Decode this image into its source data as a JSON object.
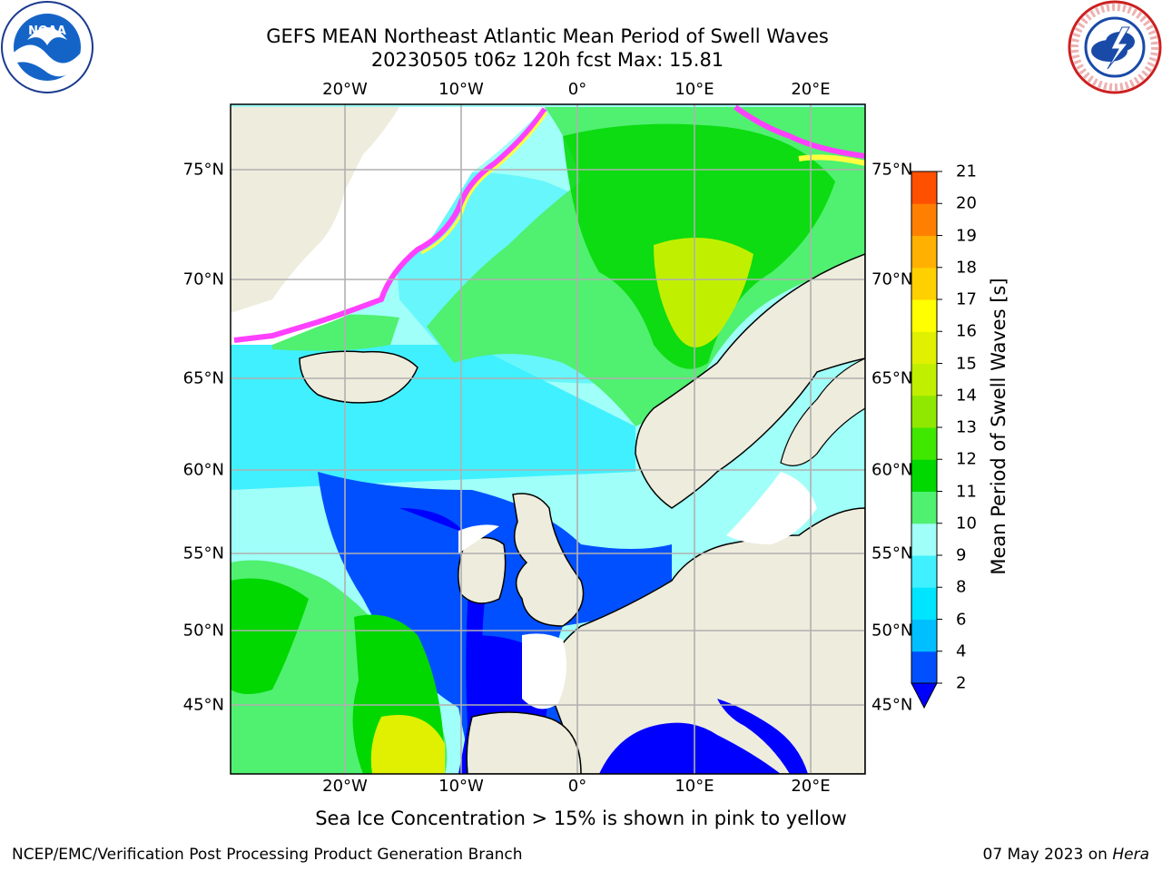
{
  "title_line1": "GEFS MEAN Northeast Atlantic Mean Period of Swell Waves",
  "title_line2": "20230505 t06z 120h fcst   Max: 15.81",
  "lon_labels": [
    "20°W",
    "10°W",
    "0°",
    "10°E",
    "20°E"
  ],
  "lat_labels_left": [
    "75°N",
    "70°N",
    "65°N",
    "60°N",
    "55°N",
    "50°N",
    "45°N"
  ],
  "lat_labels_right": [
    "75°N",
    "70°N",
    "65°N",
    "60°N",
    "55°N",
    "50°N",
    "45°N"
  ],
  "colorbar": {
    "label": "Mean Period of Swell Waves [s]",
    "ticks": [
      "2",
      "4",
      "6",
      "8",
      "9",
      "10",
      "11",
      "12",
      "13",
      "14",
      "15",
      "16",
      "17",
      "18",
      "19",
      "20",
      "21"
    ],
    "colors": [
      "#0050ff",
      "#00bfff",
      "#00e5ff",
      "#40f0ff",
      "#a0fff8",
      "#50f070",
      "#00d800",
      "#40e800",
      "#90e800",
      "#c0f000",
      "#e0f000",
      "#ffff00",
      "#ffd000",
      "#ffb000",
      "#ff8000",
      "#ff5000",
      "#ff2000",
      "#ff0000"
    ],
    "under_color": "#0000ff"
  },
  "footer_note": "Sea Ice Concentration > 15% is shown in pink to yellow",
  "footer_left": "NCEP/EMC/Verification Post Processing Product Generation Branch",
  "footer_right_date": "07 May 2023 on",
  "footer_right_machine": "Hera",
  "colors": {
    "land": "#eeecdc",
    "grid": "#b0b0b0",
    "ice_pink": "#ff40ff",
    "ice_yellow": "#ffff40"
  }
}
